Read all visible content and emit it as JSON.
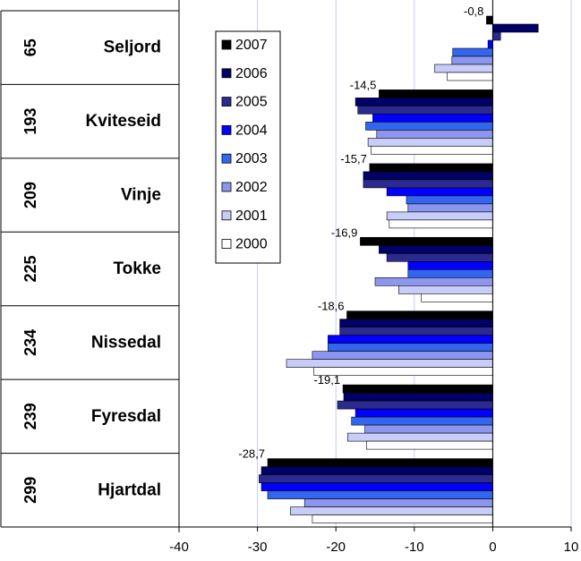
{
  "chart_data": {
    "type": "bar",
    "orientation": "horizontal",
    "categories": [
      {
        "rank": "65",
        "name": "Seljord"
      },
      {
        "rank": "193",
        "name": "Kviteseid"
      },
      {
        "rank": "209",
        "name": "Vinje"
      },
      {
        "rank": "225",
        "name": "Tokke"
      },
      {
        "rank": "234",
        "name": "Nissedal"
      },
      {
        "rank": "239",
        "name": "Fyresdal"
      },
      {
        "rank": "299",
        "name": "Hjartdal"
      }
    ],
    "series": [
      {
        "name": "2007",
        "color": "#000000",
        "values": [
          -0.8,
          -14.5,
          -15.7,
          -16.9,
          -18.6,
          -19.1,
          -28.7
        ]
      },
      {
        "name": "2006",
        "color": "#000066",
        "values": [
          5.8,
          -17.5,
          -16.5,
          -14.5,
          -19.5,
          -19.0,
          -29.5
        ]
      },
      {
        "name": "2005",
        "color": "#2b2b8f",
        "values": [
          1.0,
          -17.2,
          -16.5,
          -13.5,
          -19.5,
          -19.8,
          -29.8
        ]
      },
      {
        "name": "2004",
        "color": "#0000ff",
        "values": [
          -0.6,
          -15.3,
          -13.5,
          -10.8,
          -21.0,
          -17.5,
          -29.5
        ]
      },
      {
        "name": "2003",
        "color": "#3366ee",
        "values": [
          -5.1,
          -16.2,
          -11.0,
          -10.8,
          -21.0,
          -18.0,
          -28.7
        ]
      },
      {
        "name": "2002",
        "color": "#8c96ee",
        "values": [
          -5.2,
          -14.8,
          -10.8,
          -15.0,
          -23.0,
          -16.3,
          -24.0
        ]
      },
      {
        "name": "2001",
        "color": "#c8ccf8",
        "values": [
          -7.4,
          -15.9,
          -13.5,
          -12.0,
          -26.3,
          -18.5,
          -25.8
        ]
      },
      {
        "name": "2000",
        "color": "#ffffff",
        "values": [
          -5.8,
          -15.5,
          -13.2,
          -9.1,
          -22.8,
          -16.1,
          -23.0
        ]
      }
    ],
    "data_labels": [
      "-0,8",
      "-14,5",
      "-15,7",
      "-16,9",
      "-18,6",
      "-19,1",
      "-28,7"
    ],
    "x_ticks": [
      "-40",
      "-30",
      "-20",
      "-10",
      "0",
      "10"
    ],
    "xlim": [
      -40,
      10
    ],
    "xlabel": "",
    "ylabel": "",
    "title": "",
    "grid": "vertical",
    "legend_position": "top-left inside"
  }
}
